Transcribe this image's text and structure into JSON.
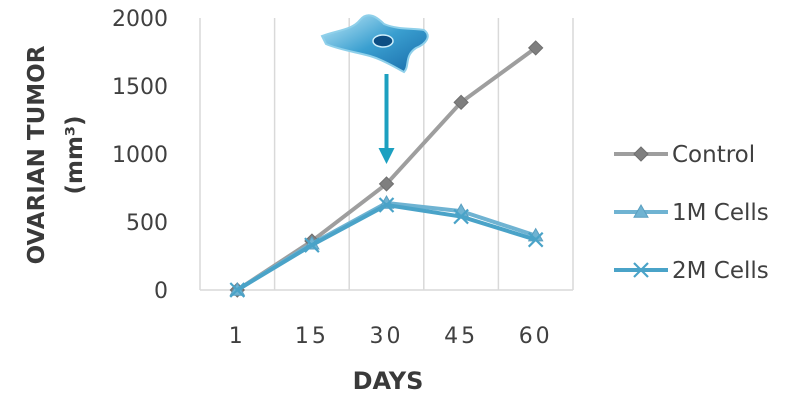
{
  "chart_data": {
    "type": "line",
    "categories": [
      "1",
      "15",
      "30",
      "45",
      "60"
    ],
    "series": [
      {
        "name": "Control",
        "values": [
          0,
          360,
          780,
          1380,
          1780
        ],
        "color": "#9e9e9e",
        "marker": "diamond"
      },
      {
        "name": "1M Cells",
        "values": [
          0,
          340,
          640,
          580,
          400
        ],
        "color": "#6fb3d2",
        "marker": "triangle"
      },
      {
        "name": "2M Cells",
        "values": [
          0,
          330,
          625,
          540,
          370
        ],
        "color": "#4aa3c8",
        "marker": "x"
      }
    ],
    "ylim": [
      0,
      2000
    ],
    "yticks": [
      0,
      500,
      1000,
      1500,
      2000
    ],
    "xlabel": "DAYS",
    "ylabel": [
      "OVARIAN TUMOR",
      "(mm³)"
    ],
    "grid": "vertical",
    "legend": "right",
    "annotation": {
      "type": "cell-icon-with-arrow",
      "at_category": "30",
      "color": "#1ca0c0"
    }
  }
}
